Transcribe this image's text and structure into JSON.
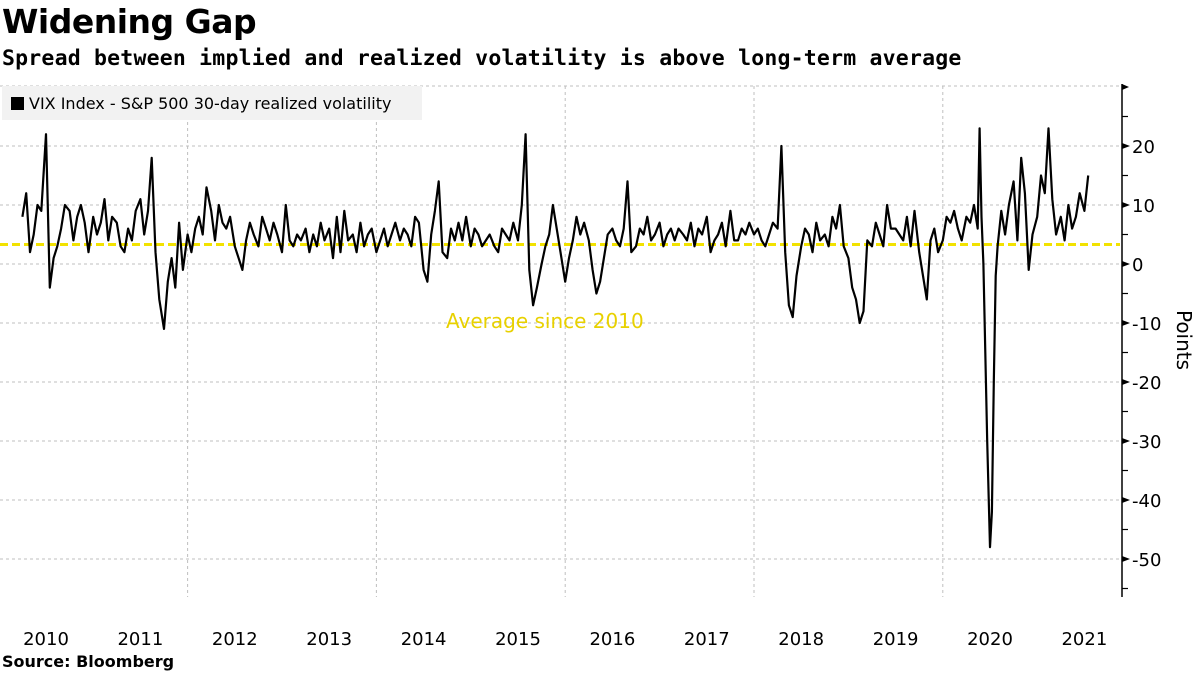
{
  "header": {
    "title": "Widening Gap",
    "subtitle": "Spread between implied and realized volatility is above long-term average"
  },
  "footer": {
    "source": "Source: Bloomberg"
  },
  "chart_data": {
    "type": "line",
    "title": "Widening Gap",
    "subtitle": "Spread between implied and realized volatility is above long-term average",
    "xlabel": "",
    "ylabel": "Points",
    "ylim": [
      -56,
      30
    ],
    "xlim": [
      2010.0,
      2021.95
    ],
    "grid": true,
    "legend_position": "top-left",
    "y_ticks": [
      20,
      10,
      0,
      -10,
      -20,
      -30,
      -40,
      -50
    ],
    "y_tick_labels": [
      "20",
      "10",
      "0",
      "-10",
      "-20",
      "-30",
      "-40",
      "-50"
    ],
    "x_tick_labels": [
      "2010",
      "2011",
      "2012",
      "2013",
      "2014",
      "2015",
      "2016",
      "2017",
      "2018",
      "2019",
      "2020",
      "2021"
    ],
    "colors": {
      "series": "#000000",
      "average": "#f2e200",
      "grid": "#bfbfbf"
    },
    "annotations": [
      {
        "text": "Average since 2010",
        "x": 2015.5,
        "y": -9.5,
        "color": "#f2e200"
      }
    ],
    "average_line": {
      "name": "Average since 2010",
      "value": 3.3
    },
    "series": [
      {
        "name": "VIX Index - S&P 500 30-day realized volatility",
        "x": [
          2010.0,
          2010.04,
          2010.08,
          2010.12,
          2010.16,
          2010.2,
          2010.25,
          2010.29,
          2010.33,
          2010.37,
          2010.41,
          2010.45,
          2010.5,
          2010.54,
          2010.58,
          2010.62,
          2010.66,
          2010.7,
          2010.75,
          2010.79,
          2010.83,
          2010.87,
          2010.91,
          2010.95,
          2011.0,
          2011.04,
          2011.08,
          2011.12,
          2011.16,
          2011.2,
          2011.25,
          2011.29,
          2011.33,
          2011.37,
          2011.41,
          2011.45,
          2011.5,
          2011.54,
          2011.58,
          2011.62,
          2011.66,
          2011.7,
          2011.75,
          2011.79,
          2011.83,
          2011.87,
          2011.91,
          2011.95,
          2012.0,
          2012.04,
          2012.08,
          2012.12,
          2012.16,
          2012.2,
          2012.25,
          2012.29,
          2012.33,
          2012.37,
          2012.41,
          2012.45,
          2012.5,
          2012.54,
          2012.58,
          2012.62,
          2012.66,
          2012.7,
          2012.75,
          2012.79,
          2012.83,
          2012.87,
          2012.91,
          2012.95,
          2013.0,
          2013.04,
          2013.08,
          2013.12,
          2013.16,
          2013.2,
          2013.25,
          2013.29,
          2013.33,
          2013.37,
          2013.41,
          2013.45,
          2013.5,
          2013.54,
          2013.58,
          2013.62,
          2013.66,
          2013.7,
          2013.75,
          2013.79,
          2013.83,
          2013.87,
          2013.91,
          2013.95,
          2014.0,
          2014.04,
          2014.08,
          2014.12,
          2014.16,
          2014.2,
          2014.25,
          2014.29,
          2014.33,
          2014.37,
          2014.41,
          2014.45,
          2014.5,
          2014.54,
          2014.58,
          2014.62,
          2014.66,
          2014.7,
          2014.75,
          2014.79,
          2014.83,
          2014.87,
          2014.91,
          2014.95,
          2015.0,
          2015.04,
          2015.08,
          2015.12,
          2015.16,
          2015.2,
          2015.25,
          2015.29,
          2015.33,
          2015.37,
          2015.41,
          2015.45,
          2015.5,
          2015.54,
          2015.58,
          2015.62,
          2015.66,
          2015.7,
          2015.75,
          2015.79,
          2015.83,
          2015.87,
          2015.91,
          2015.95,
          2016.0,
          2016.04,
          2016.08,
          2016.12,
          2016.16,
          2016.2,
          2016.25,
          2016.29,
          2016.33,
          2016.37,
          2016.41,
          2016.45,
          2016.5,
          2016.54,
          2016.58,
          2016.62,
          2016.66,
          2016.7,
          2016.75,
          2016.79,
          2016.83,
          2016.87,
          2016.91,
          2016.95,
          2017.0,
          2017.04,
          2017.08,
          2017.12,
          2017.16,
          2017.2,
          2017.25,
          2017.29,
          2017.33,
          2017.37,
          2017.41,
          2017.45,
          2017.5,
          2017.54,
          2017.58,
          2017.62,
          2017.66,
          2017.7,
          2017.75,
          2017.79,
          2017.83,
          2017.87,
          2017.91,
          2017.95,
          2018.0,
          2018.04,
          2018.08,
          2018.12,
          2018.16,
          2018.2,
          2018.25,
          2018.29,
          2018.33,
          2018.37,
          2018.41,
          2018.45,
          2018.5,
          2018.54,
          2018.58,
          2018.62,
          2018.66,
          2018.7,
          2018.75,
          2018.79,
          2018.83,
          2018.87,
          2018.91,
          2018.95,
          2019.0,
          2019.04,
          2019.08,
          2019.12,
          2019.16,
          2019.2,
          2019.25,
          2019.29,
          2019.33,
          2019.37,
          2019.41,
          2019.45,
          2019.5,
          2019.54,
          2019.58,
          2019.62,
          2019.66,
          2019.7,
          2019.75,
          2019.79,
          2019.83,
          2019.87,
          2019.91,
          2019.95,
          2020.0,
          2020.04,
          2020.08,
          2020.12,
          2020.14,
          2020.16,
          2020.18,
          2020.2,
          2020.22,
          2020.25,
          2020.27,
          2020.29,
          2020.31,
          2020.33,
          2020.37,
          2020.41,
          2020.45,
          2020.5,
          2020.54,
          2020.58,
          2020.62,
          2020.66,
          2020.7,
          2020.75,
          2020.79,
          2020.83,
          2020.87,
          2020.91,
          2020.95,
          2021.0,
          2021.04,
          2021.08,
          2021.12,
          2021.16,
          2021.2,
          2021.25,
          2021.29
        ],
        "values": [
          8,
          12,
          2,
          5,
          10,
          9,
          22,
          -4,
          1,
          3,
          6,
          10,
          9,
          4,
          8,
          10,
          7,
          2,
          8,
          5,
          7,
          11,
          4,
          8,
          7,
          3,
          2,
          6,
          4,
          9,
          11,
          5,
          9,
          18,
          2,
          -6,
          -11,
          -3,
          1,
          -4,
          7,
          -1,
          5,
          2,
          6,
          8,
          5,
          13,
          9,
          4,
          10,
          7,
          6,
          8,
          3,
          1,
          -1,
          4,
          7,
          5,
          3,
          8,
          6,
          4,
          7,
          5,
          2,
          10,
          4,
          3,
          5,
          4,
          6,
          2,
          5,
          3,
          7,
          4,
          6,
          1,
          8,
          2,
          9,
          4,
          5,
          2,
          7,
          3,
          5,
          6,
          2,
          4,
          6,
          3,
          5,
          7,
          4,
          6,
          5,
          3,
          8,
          7,
          -1,
          -3,
          5,
          9,
          14,
          2,
          1,
          6,
          4,
          7,
          4,
          8,
          3,
          6,
          5,
          3,
          4,
          5,
          3,
          2,
          6,
          5,
          4,
          7,
          4,
          10,
          22,
          -1,
          -7,
          -4,
          0,
          3,
          5,
          10,
          6,
          2,
          -3,
          1,
          4,
          8,
          5,
          7,
          4,
          -1,
          -5,
          -3,
          1,
          5,
          6,
          4,
          3,
          6,
          14,
          2,
          3,
          6,
          5,
          8,
          4,
          5,
          7,
          3,
          5,
          6,
          4,
          6,
          5,
          4,
          7,
          3,
          6,
          5,
          8,
          2,
          4,
          5,
          7,
          3,
          9,
          4,
          4,
          6,
          5,
          7,
          5,
          6,
          4,
          3,
          5,
          7,
          6,
          20,
          2,
          -7,
          -9,
          -2,
          3,
          6,
          5,
          2,
          7,
          4,
          5,
          3,
          8,
          6,
          10,
          3,
          1,
          -4,
          -6,
          -10,
          -8,
          4,
          3,
          7,
          5,
          3,
          10,
          6,
          6,
          5,
          4,
          8,
          3,
          9,
          2,
          -2,
          -6,
          4,
          6,
          2,
          4,
          8,
          7,
          9,
          6,
          4,
          8,
          7,
          10,
          6,
          23,
          8,
          0,
          -15,
          -30,
          -48,
          -42,
          -20,
          -2,
          3,
          9,
          5,
          10,
          14,
          4,
          18,
          12,
          -1,
          5,
          8,
          15,
          12,
          23,
          11,
          5,
          8,
          4,
          10,
          6,
          8,
          12,
          9,
          15
        ]
      }
    ]
  }
}
